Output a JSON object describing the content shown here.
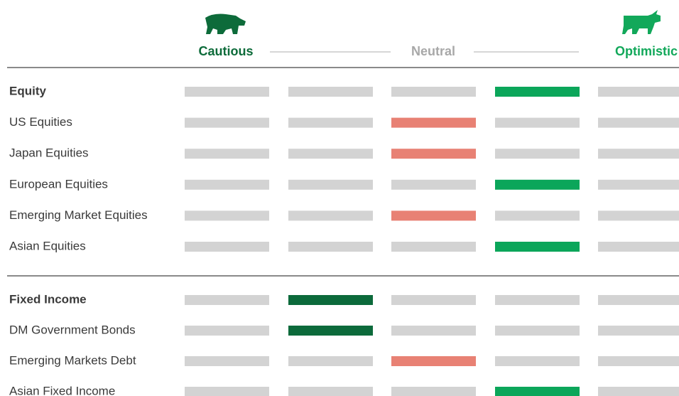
{
  "header": {
    "left": "Cautious",
    "middle": "Neutral",
    "right": "Optimistic"
  },
  "sections": [
    {
      "rows": [
        {
          "label": "Equity",
          "level": 3,
          "color": "#0ba65a"
        },
        {
          "label": "US Equities",
          "level": 2,
          "color": "#e88174"
        },
        {
          "label": "Japan Equities",
          "level": 2,
          "color": "#e88174"
        },
        {
          "label": "European Equities",
          "level": 3,
          "color": "#0ba65a"
        },
        {
          "label": "Emerging Market Equities",
          "level": 2,
          "color": "#e88174"
        },
        {
          "label": "Asian Equities",
          "level": 3,
          "color": "#0ba65a"
        }
      ]
    },
    {
      "rows": [
        {
          "label": "Fixed Income",
          "level": 1,
          "color": "#0c6a3b"
        },
        {
          "label": "DM Government Bonds",
          "level": 1,
          "color": "#0c6a3b"
        },
        {
          "label": "Emerging Markets Debt",
          "level": 2,
          "color": "#e88174"
        },
        {
          "label": "Asian Fixed Income",
          "level": 3,
          "color": "#0ba65a"
        }
      ]
    }
  ]
}
